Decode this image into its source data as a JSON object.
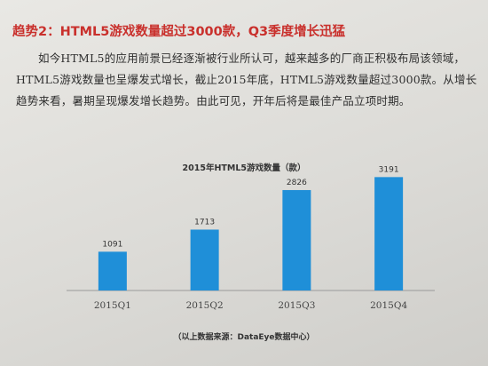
{
  "heading": "趋势2：HTML5游戏数量超过3000款，Q3季度增长迅猛",
  "paragraph": "如今HTML5的应用前景已经逐渐被行业所认可，越来越多的厂商正积极布局该领域，HTML5游戏数量也呈爆发式增长，截止2015年底，HTML5游戏数量超过3000款。从增长趋势来看，暑期呈现爆发增长趋势。由此可见，开年后将是最佳产品立项时期。",
  "source": "（以上数据来源：DataEye数据中心）",
  "colors": {
    "bar": "#1f8fd8",
    "heading": "#c9302c"
  },
  "chart_data": {
    "type": "bar",
    "title": "2015年HTML5游戏数量（款）",
    "categories": [
      "2015Q1",
      "2015Q2",
      "2015Q3",
      "2015Q4"
    ],
    "values": [
      1091,
      1713,
      2826,
      3191
    ],
    "xlabel": "",
    "ylabel": "",
    "ylim": [
      0,
      3300
    ],
    "grid": false
  }
}
